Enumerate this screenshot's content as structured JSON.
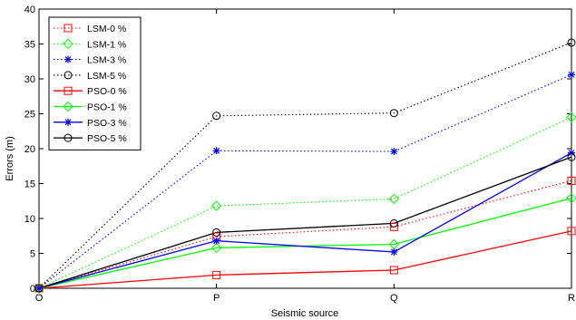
{
  "chart_data": {
    "type": "line",
    "categories": [
      "O",
      "P",
      "Q",
      "R"
    ],
    "xlabel": "Seismic source",
    "ylabel": "Errors (m)",
    "ylim": [
      0,
      40
    ],
    "yticks": [
      0,
      5,
      10,
      15,
      20,
      25,
      30,
      35,
      40
    ],
    "grid": false,
    "legend_position": "top-left",
    "series": [
      {
        "name": "LSM-0 %",
        "values": [
          0,
          7.4,
          8.8,
          15.4
        ],
        "color": "#ff0000",
        "dash": "dotted",
        "marker": "square"
      },
      {
        "name": "LSM-1 %",
        "values": [
          0,
          11.8,
          12.8,
          24.5
        ],
        "color": "#00ff00",
        "dash": "dotted",
        "marker": "diamond"
      },
      {
        "name": "LSM-3 %",
        "values": [
          0,
          19.7,
          19.6,
          30.6
        ],
        "color": "#0000ff",
        "dash": "dotted",
        "marker": "star"
      },
      {
        "name": "LSM-5 %",
        "values": [
          0,
          24.7,
          25.1,
          35.2
        ],
        "color": "#000000",
        "dash": "dotted",
        "marker": "circle"
      },
      {
        "name": "PSO-0 %",
        "values": [
          0,
          1.9,
          2.6,
          8.2
        ],
        "color": "#ff0000",
        "dash": "solid",
        "marker": "square"
      },
      {
        "name": "PSO-1 %",
        "values": [
          0,
          5.8,
          6.3,
          12.9
        ],
        "color": "#00ff00",
        "dash": "solid",
        "marker": "diamond"
      },
      {
        "name": "PSO-3 %",
        "values": [
          0,
          6.8,
          5.2,
          19.4
        ],
        "color": "#0000ff",
        "dash": "solid",
        "marker": "star"
      },
      {
        "name": "PSO-5 %",
        "values": [
          0,
          8.0,
          9.3,
          18.8
        ],
        "color": "#000000",
        "dash": "solid",
        "marker": "circle"
      }
    ]
  }
}
